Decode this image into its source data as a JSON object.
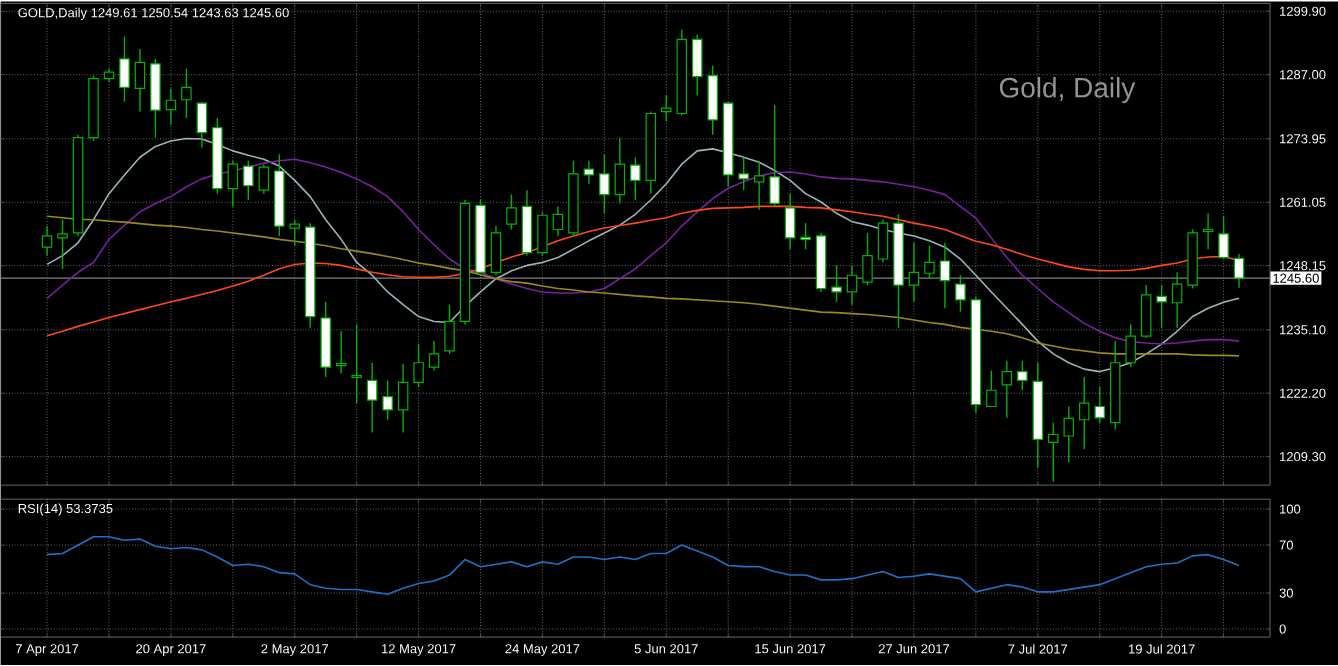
{
  "chart_data": [
    {
      "type": "candlestick",
      "title": "GOLD,Daily 1249.61 1250.54 1243.63 1245.60",
      "annotations": [
        "Gold, Daily"
      ],
      "categories": [
        null,
        null,
        null,
        null,
        null,
        null,
        null,
        null,
        null,
        null,
        null,
        null,
        null,
        null,
        null,
        null,
        null,
        null,
        null,
        null,
        null,
        null,
        null,
        null,
        null,
        null,
        null,
        null,
        null,
        null,
        null,
        null,
        null,
        null,
        null,
        null,
        null,
        null,
        null,
        null,
        null,
        null,
        null,
        null,
        null,
        null,
        null,
        null,
        null,
        null,
        null,
        null,
        null,
        null,
        null,
        null,
        null,
        null,
        null,
        null,
        null,
        null,
        null,
        null,
        null,
        null,
        null,
        null,
        null,
        null,
        null,
        null,
        null,
        null,
        null,
        null,
        null,
        null
      ],
      "color": "#00b400",
      "ohlc": [
        [
          1251.9,
          1256.2,
          1250.2,
          1254.2
        ],
        [
          1253.8,
          1257.5,
          1247.5,
          1254.6
        ],
        [
          1254.8,
          1274.8,
          1254.2,
          1274.2
        ],
        [
          1274.2,
          1286.8,
          1273.5,
          1286.2
        ],
        [
          1286.2,
          1288.2,
          1285.5,
          1287.5
        ],
        [
          1290.2,
          1294.8,
          1281.5,
          1284.4
        ],
        [
          1284.2,
          1292.2,
          1279.5,
          1289.5
        ],
        [
          1289.2,
          1290.2,
          1274.2,
          1279.8
        ],
        [
          1279.9,
          1284.2,
          1276.8,
          1281.8
        ],
        [
          1281.9,
          1288.2,
          1278.2,
          1284.4
        ],
        [
          1281.2,
          1281.5,
          1272.2,
          1275.2
        ],
        [
          1276.2,
          1278.2,
          1262.8,
          1263.8
        ],
        [
          1263.8,
          1269.5,
          1260.2,
          1268.8
        ],
        [
          1268.4,
          1269.5,
          1261.5,
          1264.4
        ],
        [
          1263.5,
          1268.8,
          1262.8,
          1268.2
        ],
        [
          1267.4,
          1270.8,
          1254.2,
          1256.2
        ],
        [
          1255.8,
          1257.5,
          1252.2,
          1256.6
        ],
        [
          1256.0,
          1256.8,
          1235.5,
          1237.8
        ],
        [
          1237.5,
          1240.8,
          1225.5,
          1227.5
        ],
        [
          1227.8,
          1234.8,
          1226.2,
          1228.2
        ],
        [
          1225.4,
          1236.2,
          1220.2,
          1225.8
        ],
        [
          1224.8,
          1228.4,
          1214.2,
          1220.8
        ],
        [
          1221.5,
          1224.8,
          1216.8,
          1218.8
        ],
        [
          1218.8,
          1228.2,
          1214.2,
          1224.4
        ],
        [
          1224.4,
          1232.2,
          1223.5,
          1228.4
        ],
        [
          1227.5,
          1232.8,
          1226.8,
          1230.2
        ],
        [
          1230.8,
          1240.2,
          1230.2,
          1236.8
        ],
        [
          1236.8,
          1261.5,
          1236.2,
          1260.8
        ],
        [
          1260.4,
          1261.5,
          1246.6,
          1246.8
        ],
        [
          1246.8,
          1256.2,
          1246.2,
          1254.8
        ],
        [
          1256.6,
          1262.6,
          1255.5,
          1259.9
        ],
        [
          1260.2,
          1263.5,
          1250.2,
          1250.8
        ],
        [
          1250.8,
          1259.1,
          1250.2,
          1258.4
        ],
        [
          1255.5,
          1260.2,
          1254.2,
          1258.6
        ],
        [
          1254.8,
          1269.5,
          1254.2,
          1266.8
        ],
        [
          1267.8,
          1269.5,
          1264.8,
          1266.6
        ],
        [
          1266.8,
          1270.8,
          1258.8,
          1262.6
        ],
        [
          1262.6,
          1274.2,
          1260.8,
          1268.8
        ],
        [
          1268.6,
          1270.2,
          1261.5,
          1265.5
        ],
        [
          1265.5,
          1279.5,
          1262.8,
          1279.1
        ],
        [
          1279.5,
          1282.8,
          1277.5,
          1280.2
        ],
        [
          1279.1,
          1296.2,
          1278.8,
          1294.2
        ],
        [
          1294.2,
          1295.1,
          1282.8,
          1286.6
        ],
        [
          1286.8,
          1288.8,
          1274.8,
          1277.8
        ],
        [
          1281.2,
          1281.5,
          1264.2,
          1266.6
        ],
        [
          1266.8,
          1270.2,
          1263.5,
          1265.8
        ],
        [
          1265.2,
          1269.5,
          1259.5,
          1266.4
        ],
        [
          1266.2,
          1280.8,
          1260.2,
          1260.8
        ],
        [
          1259.9,
          1262.8,
          1251.5,
          1253.8
        ],
        [
          1253.9,
          1256.8,
          1251.5,
          1253.5
        ],
        [
          1254.2,
          1254.8,
          1242.8,
          1243.5
        ],
        [
          1243.8,
          1248.2,
          1240.8,
          1242.8
        ],
        [
          1242.8,
          1248.2,
          1240.2,
          1246.2
        ],
        [
          1244.8,
          1254.8,
          1244.2,
          1250.2
        ],
        [
          1249.5,
          1257.5,
          1248.8,
          1256.8
        ],
        [
          1256.8,
          1258.6,
          1235.5,
          1244.2
        ],
        [
          1244.2,
          1252.8,
          1240.8,
          1246.8
        ],
        [
          1246.6,
          1252.2,
          1245.5,
          1248.8
        ],
        [
          1249.1,
          1252.8,
          1239.5,
          1245.1
        ],
        [
          1244.4,
          1246.2,
          1238.8,
          1241.2
        ],
        [
          1241.2,
          1241.8,
          1218.2,
          1219.9
        ],
        [
          1219.5,
          1226.8,
          1219.5,
          1222.8
        ],
        [
          1223.9,
          1228.8,
          1217.2,
          1226.6
        ],
        [
          1226.6,
          1228.8,
          1222.8,
          1224.8
        ],
        [
          1224.6,
          1228.4,
          1207.1,
          1212.8
        ],
        [
          1212.2,
          1216.2,
          1204.2,
          1213.8
        ],
        [
          1213.5,
          1219.5,
          1208.2,
          1217.1
        ],
        [
          1216.8,
          1225.5,
          1210.8,
          1220.2
        ],
        [
          1219.5,
          1223.5,
          1216.2,
          1217.2
        ],
        [
          1216.2,
          1232.8,
          1214.8,
          1228.4
        ],
        [
          1228.4,
          1236.2,
          1227.5,
          1233.8
        ],
        [
          1233.8,
          1244.2,
          1233.5,
          1242.2
        ],
        [
          1241.9,
          1244.2,
          1235.5,
          1240.8
        ],
        [
          1240.6,
          1246.8,
          1235.5,
          1244.4
        ],
        [
          1244.2,
          1255.5,
          1243.5,
          1254.8
        ],
        [
          1255.1,
          1258.8,
          1251.5,
          1255.5
        ],
        [
          1254.6,
          1258.2,
          1249.5,
          1249.8
        ],
        [
          1249.61,
          1250.54,
          1243.63,
          1245.6
        ]
      ],
      "series": [
        {
          "type": "line",
          "color": "#9ab4ba",
          "values": [
            1248.4,
            1250.2,
            1252.8,
            1257.5,
            1262.8,
            1266.6,
            1270.2,
            1272.4,
            1273.5,
            1274.0,
            1273.9,
            1272.8,
            1271.5,
            1270.6,
            1269.8,
            1268.4,
            1265.5,
            1262.2,
            1257.5,
            1253.5,
            1248.8,
            1246.2,
            1242.8,
            1240.2,
            1237.8,
            1236.8,
            1236.6,
            1239.9,
            1242.8,
            1245.5,
            1247.1,
            1248.2,
            1248.8,
            1249.8,
            1251.5,
            1253.2,
            1254.8,
            1256.4,
            1258.6,
            1261.5,
            1264.8,
            1268.8,
            1271.5,
            1271.9,
            1271.1,
            1270.2,
            1269.2,
            1267.5,
            1265.5,
            1262.8,
            1261.1,
            1258.8,
            1257.1,
            1256.4,
            1255.5,
            1254.8,
            1254.2,
            1253.2,
            1251.9,
            1249.5,
            1246.2,
            1242.8,
            1239.5,
            1236.2,
            1232.8,
            1230.2,
            1228.4,
            1227.1,
            1226.6,
            1227.4,
            1228.4,
            1230.2,
            1232.2,
            1234.8,
            1237.8,
            1239.5,
            1240.7,
            1241.5
          ]
        },
        {
          "type": "line",
          "color": "#7a1fa0",
          "values": [
            1241.5,
            1244.2,
            1246.8,
            1248.8,
            1253.5,
            1256.4,
            1259.1,
            1260.8,
            1262.2,
            1264.2,
            1265.8,
            1266.8,
            1267.4,
            1268.2,
            1269.0,
            1269.5,
            1269.8,
            1269.1,
            1268.2,
            1267.1,
            1265.8,
            1264.2,
            1262.2,
            1259.1,
            1255.5,
            1252.4,
            1249.5,
            1247.5,
            1246.8,
            1245.5,
            1244.4,
            1243.5,
            1242.8,
            1242.6,
            1242.6,
            1242.8,
            1243.5,
            1245.5,
            1247.5,
            1250.2,
            1252.8,
            1256.2,
            1259.1,
            1261.8,
            1263.9,
            1265.2,
            1266.4,
            1267.1,
            1267.2,
            1266.8,
            1266.2,
            1265.9,
            1265.8,
            1265.5,
            1265.2,
            1264.7,
            1264.2,
            1263.5,
            1262.6,
            1260.2,
            1257.8,
            1253.8,
            1249.8,
            1246.2,
            1243.5,
            1240.8,
            1238.6,
            1236.4,
            1234.8,
            1233.5,
            1232.7,
            1232.4,
            1232.2,
            1232.4,
            1232.8,
            1233.1,
            1233.1,
            1232.8
          ]
        },
        {
          "type": "line",
          "color": "#ff4a10",
          "values": [
            1233.9,
            1234.8,
            1235.8,
            1236.7,
            1237.6,
            1238.4,
            1239.2,
            1240.0,
            1240.8,
            1241.5,
            1242.3,
            1243.1,
            1244.0,
            1245.0,
            1246.2,
            1247.5,
            1248.4,
            1248.7,
            1248.6,
            1248.2,
            1247.5,
            1246.8,
            1246.3,
            1245.9,
            1245.8,
            1245.8,
            1246.0,
            1246.6,
            1247.5,
            1248.8,
            1249.9,
            1250.8,
            1252.0,
            1253.2,
            1254.2,
            1255.1,
            1255.8,
            1256.3,
            1256.8,
            1257.4,
            1257.9,
            1258.8,
            1259.4,
            1259.8,
            1259.9,
            1260.0,
            1260.2,
            1260.2,
            1260.2,
            1260.0,
            1259.9,
            1259.5,
            1259.1,
            1258.6,
            1258.2,
            1257.5,
            1256.8,
            1256.2,
            1255.5,
            1254.3,
            1253.1,
            1252.4,
            1251.5,
            1250.4,
            1249.5,
            1248.7,
            1247.9,
            1247.4,
            1247.1,
            1247.1,
            1247.2,
            1247.6,
            1248.2,
            1248.7,
            1249.5,
            1249.9,
            1250.0,
            1249.2
          ]
        },
        {
          "type": "line",
          "color": "#9a8a1c",
          "values": [
            1258.2,
            1257.9,
            1257.6,
            1257.5,
            1257.2,
            1257.0,
            1256.7,
            1256.4,
            1256.2,
            1255.9,
            1255.5,
            1255.2,
            1254.8,
            1254.4,
            1254.0,
            1253.5,
            1253.1,
            1252.7,
            1252.2,
            1251.6,
            1251.1,
            1250.6,
            1250.0,
            1249.4,
            1248.7,
            1248.2,
            1247.6,
            1247.1,
            1246.3,
            1245.5,
            1244.9,
            1244.6,
            1244.0,
            1243.5,
            1243.2,
            1242.8,
            1242.6,
            1242.3,
            1242.0,
            1241.8,
            1241.5,
            1241.4,
            1241.2,
            1241.0,
            1240.8,
            1240.6,
            1240.3,
            1239.9,
            1239.5,
            1239.1,
            1238.7,
            1238.6,
            1238.4,
            1238.2,
            1237.9,
            1237.6,
            1237.1,
            1236.6,
            1236.2,
            1235.6,
            1235.2,
            1234.8,
            1234.3,
            1233.5,
            1232.4,
            1231.8,
            1231.2,
            1230.8,
            1230.4,
            1230.2,
            1230.2,
            1230.2,
            1230.2,
            1230.2,
            1230.0,
            1229.9,
            1229.9,
            1229.8
          ]
        }
      ],
      "ylim": [
        1203.5,
        1301.5
      ],
      "yticks": [
        {
          "value": 1299.9,
          "label": "1299.90"
        },
        {
          "value": 1287,
          "label": "1287.00"
        },
        1273.95,
        1261.05,
        1248.15,
        {
          "value": 1235.1,
          "label": "1235.10"
        },
        {
          "value": 1222.2,
          "label": "1222.20"
        },
        {
          "value": 1209.3,
          "label": "1209.30"
        }
      ],
      "ref_lines": [
        {
          "axis": "y",
          "value": 1245.6,
          "label": "1245.60",
          "color": "#808080"
        }
      ],
      "grid": true,
      "tick_labels": "y"
    },
    {
      "type": "line",
      "title": "RSI(14) 53.3735",
      "categories": [
        "7 Apr 2017",
        null,
        null,
        null,
        null,
        null,
        null,
        null,
        "20 Apr 2017",
        null,
        null,
        null,
        null,
        null,
        null,
        null,
        "2 May 2017",
        null,
        null,
        null,
        null,
        null,
        null,
        null,
        "12 May 2017",
        null,
        null,
        null,
        null,
        null,
        null,
        null,
        "24 May 2017",
        null,
        null,
        null,
        null,
        null,
        null,
        null,
        "5 Jun 2017",
        null,
        null,
        null,
        null,
        null,
        null,
        null,
        "15 Jun 2017",
        null,
        null,
        null,
        null,
        null,
        null,
        null,
        "27 Jun 2017",
        null,
        null,
        null,
        null,
        null,
        null,
        null,
        "7 Jul 2017",
        null,
        null,
        null,
        null,
        null,
        null,
        null,
        "19 Jul 2017",
        null,
        null,
        null,
        null,
        null
      ],
      "series": [
        {
          "color": "#2070c8",
          "values": [
            62,
            63,
            70,
            77,
            77,
            74,
            75,
            69,
            67,
            68,
            66,
            60,
            53,
            54,
            52,
            47,
            46,
            37,
            34,
            33,
            33,
            31,
            29,
            34,
            38,
            40,
            45,
            58,
            52,
            54,
            56,
            52,
            56,
            54,
            60,
            60,
            58,
            60,
            58,
            63,
            63,
            70,
            65,
            60,
            53,
            52,
            52,
            48,
            45,
            45,
            41,
            41,
            42,
            45,
            48,
            43,
            44,
            46,
            44,
            42,
            31,
            34,
            37,
            35,
            31,
            31,
            33,
            35,
            37,
            42,
            47,
            52,
            54,
            55,
            61,
            62,
            58,
            53
          ]
        }
      ],
      "ylim": [
        -6.7,
        108.3
      ],
      "yticks": [
        0,
        30,
        70,
        100
      ],
      "grid": true
    }
  ]
}
